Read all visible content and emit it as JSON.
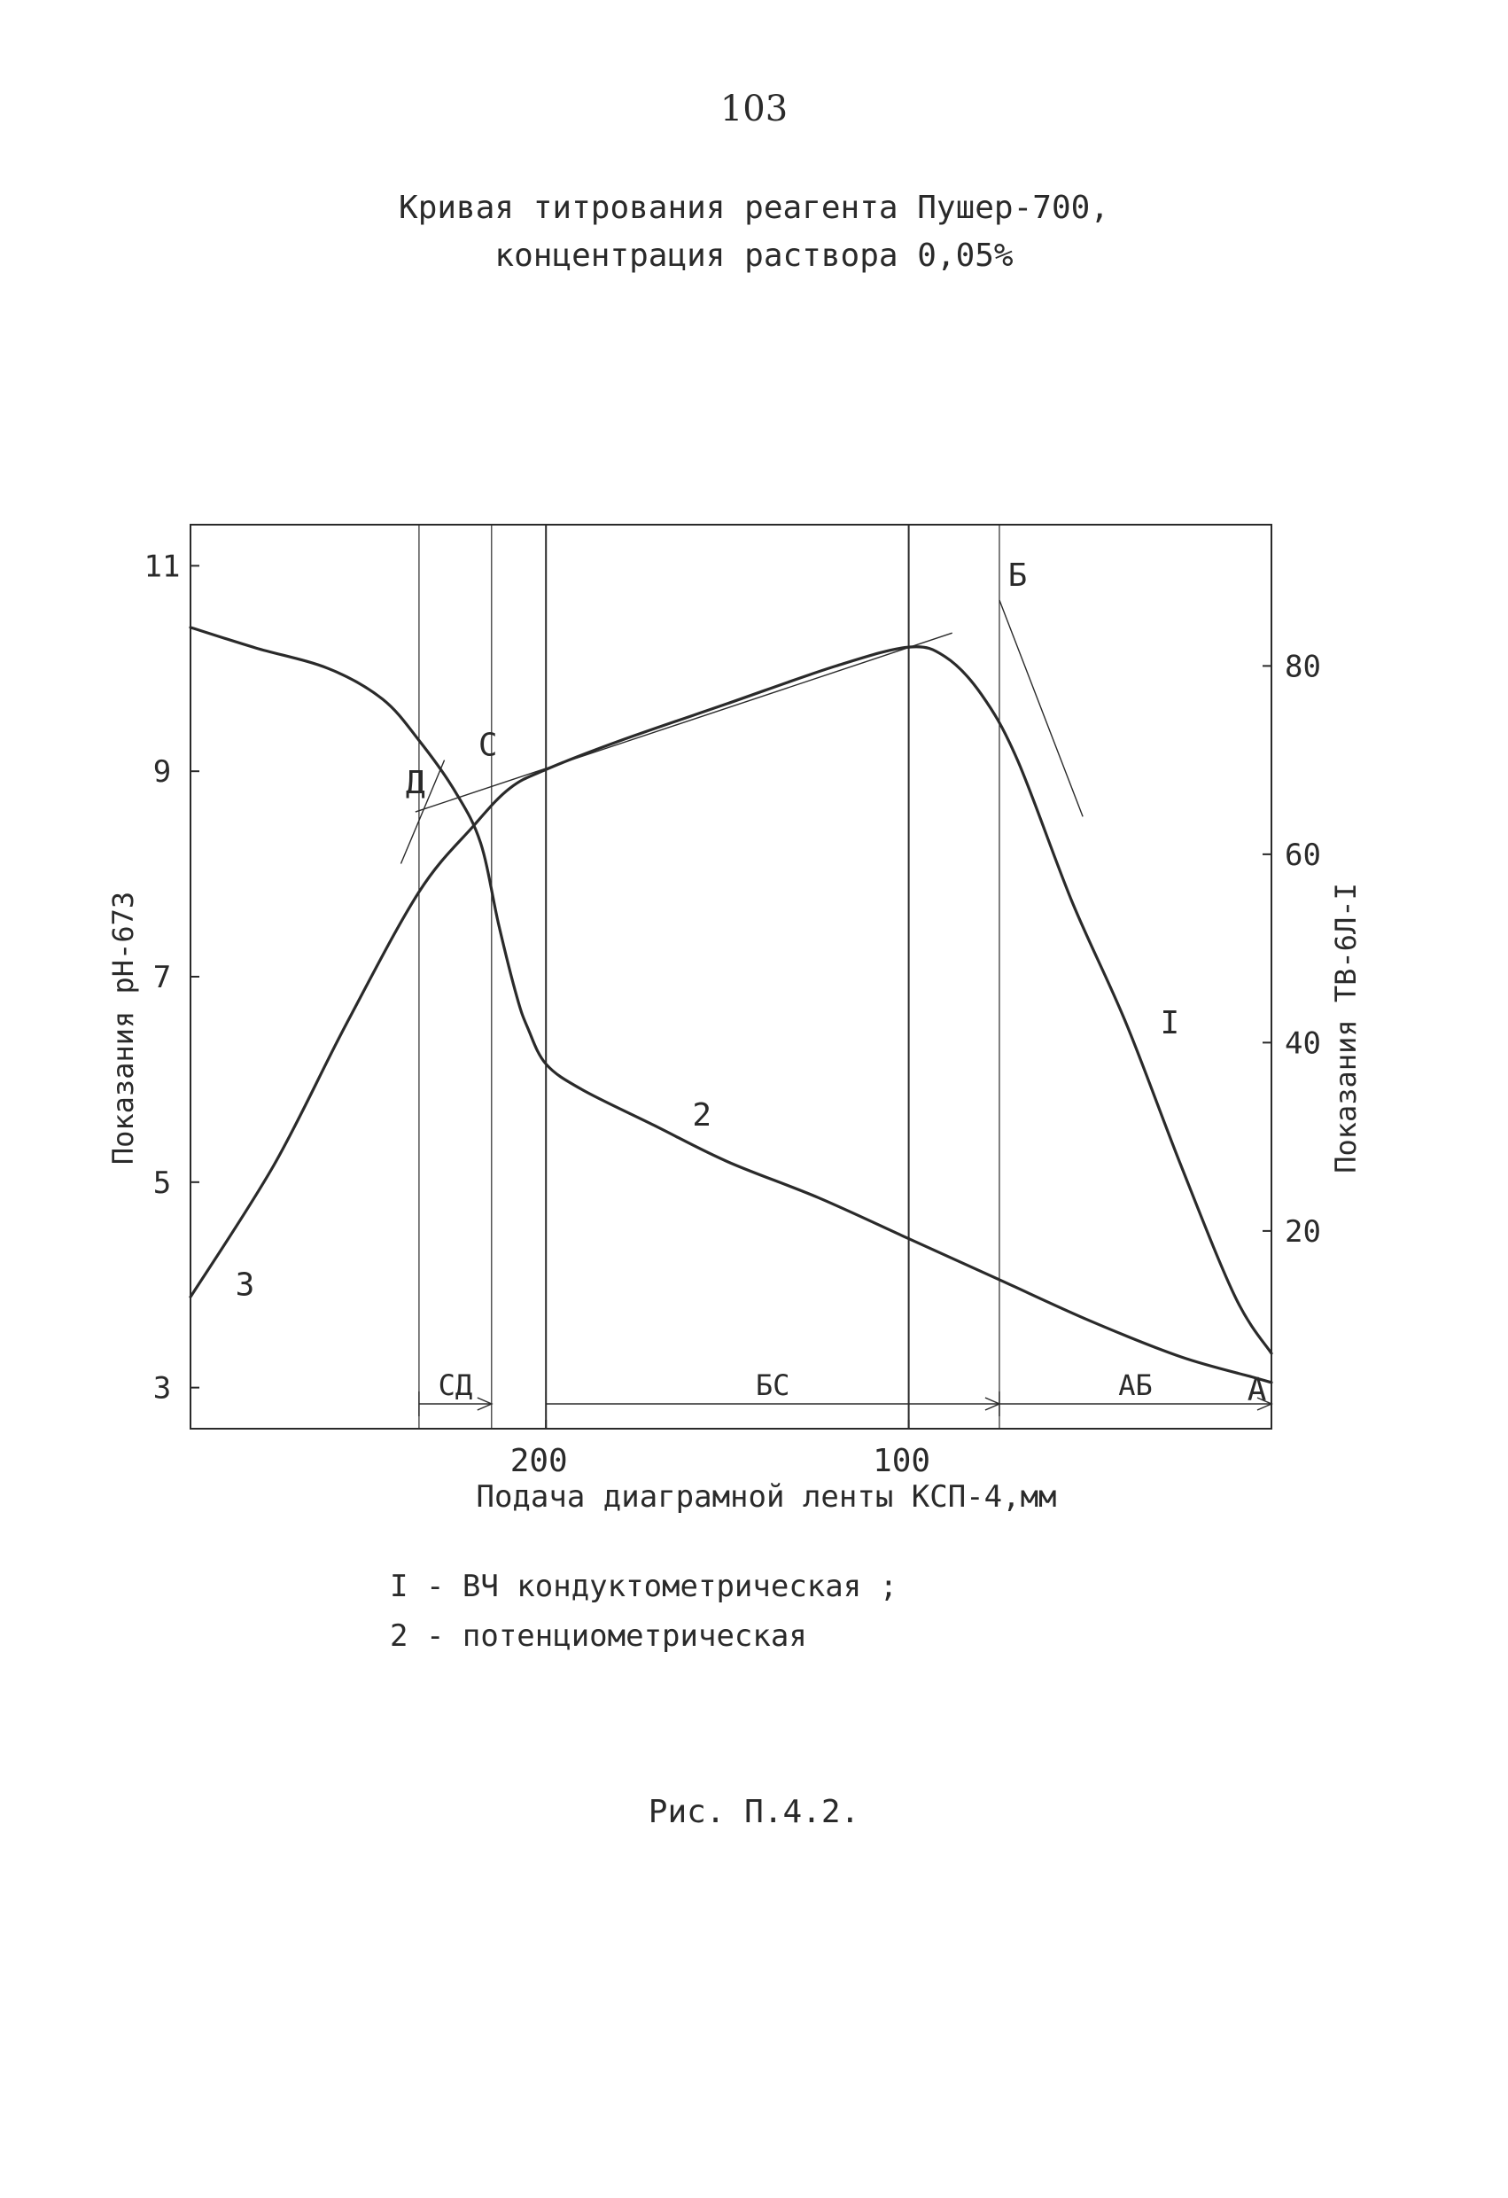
{
  "page": {
    "number": "103",
    "title_lines": [
      "Кривая титрования реагента Пушер-700,",
      "концентрация раствора 0,05%"
    ],
    "legend": [
      "I - ВЧ кондуктометрическая ;",
      "2 - потенциометрическая"
    ],
    "caption": "Рис. П.4.2."
  },
  "chart_data": {
    "type": "line",
    "xlabel": "Подача диаграмной ленты КСП-4,мм",
    "x_reversed": true,
    "xlim": [
      298,
      0
    ],
    "x_ticks": [
      200,
      100
    ],
    "y_left": {
      "label": "Показания рН-673",
      "lim": [
        2.6,
        11.4
      ],
      "ticks": [
        3,
        5,
        7,
        9,
        11
      ],
      "tick_labels": [
        "3",
        "5",
        "7",
        "9",
        "11"
      ]
    },
    "y_right": {
      "label": "Показания ТВ-6Л-I",
      "lim": [
        -1,
        95
      ],
      "ticks": [
        20,
        40,
        60,
        80
      ]
    },
    "grid": false,
    "series": [
      {
        "name": "I",
        "axis": "right",
        "x": [
          298,
          275,
          255,
          235,
          220,
          210,
          200,
          180,
          150,
          120,
          100,
          90,
          80,
          70,
          55,
          40,
          25,
          10,
          0
        ],
        "y": [
          13,
          27,
          42,
          56,
          63,
          67,
          69,
          72,
          76,
          80,
          82,
          81,
          77,
          70,
          55,
          42,
          27,
          13,
          7
        ]
      },
      {
        "name": "2",
        "axis": "left",
        "x": [
          298,
          280,
          260,
          245,
          235,
          225,
          218,
          213,
          208,
          205,
          200,
          190,
          170,
          150,
          125,
          100,
          75,
          50,
          25,
          5,
          0
        ],
        "y": [
          10.4,
          10.2,
          10.0,
          9.7,
          9.3,
          8.8,
          8.3,
          7.5,
          6.8,
          6.5,
          6.15,
          5.9,
          5.55,
          5.2,
          4.85,
          4.45,
          4.05,
          3.65,
          3.3,
          3.1,
          3.05
        ]
      }
    ],
    "tangent_lines": [
      {
        "axis": "right",
        "x": [
          236,
          88
        ],
        "y": [
          64.5,
          83.5
        ]
      },
      {
        "axis": "right",
        "x": [
          75,
          52
        ],
        "y": [
          87,
          64
        ]
      },
      {
        "axis": "right",
        "x": [
          240,
          228
        ],
        "y": [
          59,
          70
        ]
      }
    ],
    "vertical_lines": [
      {
        "x": 235,
        "style": "thin"
      },
      {
        "x": 215,
        "style": "thin"
      },
      {
        "x": 200,
        "style": "solid"
      },
      {
        "x": 100,
        "style": "solid"
      },
      {
        "x": 75,
        "style": "thin"
      }
    ],
    "annotations": [
      {
        "text": "Д",
        "x": 236,
        "axis": "right",
        "y": 66.5
      },
      {
        "text": "С",
        "x": 216,
        "axis": "right",
        "y": 70.5
      },
      {
        "text": "Б",
        "x": 70,
        "axis": "right",
        "y": 88.5
      },
      {
        "text": "А",
        "x": 4,
        "axis": "right",
        "y": 2
      },
      {
        "text": "I",
        "x": 28,
        "axis": "right",
        "y": 41
      },
      {
        "text": "2",
        "x": 157,
        "axis": "left",
        "y": 5.55
      },
      {
        "text": "3",
        "x": 283,
        "axis": "left",
        "y": 3.9
      }
    ],
    "segments": [
      {
        "label": "СД",
        "from": 235,
        "to": 215
      },
      {
        "label": "БС",
        "from": 200,
        "to": 75
      },
      {
        "label": "АБ",
        "from": 75,
        "to": 0
      }
    ]
  }
}
